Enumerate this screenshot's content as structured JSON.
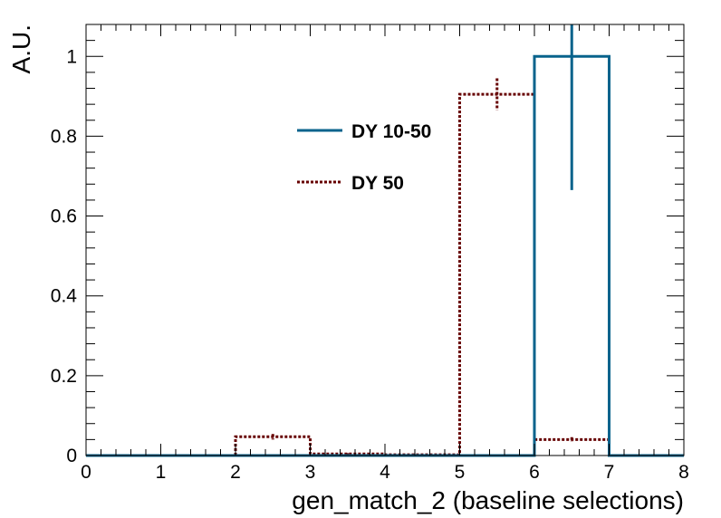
{
  "chart_data": {
    "type": "histogram",
    "title": "",
    "xlabel": "gen_match_2 (baseline selections)",
    "ylabel": "A.U.",
    "xlim": [
      0,
      8
    ],
    "ylim": [
      0,
      1.08
    ],
    "x_ticks": [
      "0",
      "1",
      "2",
      "3",
      "4",
      "5",
      "6",
      "7",
      "8"
    ],
    "y_ticks": [
      "0",
      "0.2",
      "0.4",
      "0.6",
      "0.8",
      "1"
    ],
    "bin_edges": [
      0,
      1,
      2,
      3,
      4,
      5,
      6,
      7,
      8
    ],
    "grid": false,
    "legend_position": "upper-center",
    "series": [
      {
        "name": "DY 10-50",
        "color": "#08638c",
        "line_style": "solid",
        "values": [
          0,
          0,
          0,
          0,
          0,
          0,
          1.0,
          0
        ],
        "errors": [
          0,
          0,
          0,
          0,
          0,
          0,
          0.335,
          0
        ]
      },
      {
        "name": "DY 50",
        "color": "#660000",
        "line_style": "dotted",
        "values": [
          0,
          0,
          0.047,
          0.004,
          0.002,
          0.905,
          0.04,
          0
        ],
        "errors": [
          0,
          0,
          0.007,
          0.002,
          0.001,
          0.04,
          0.006,
          0
        ]
      }
    ]
  }
}
